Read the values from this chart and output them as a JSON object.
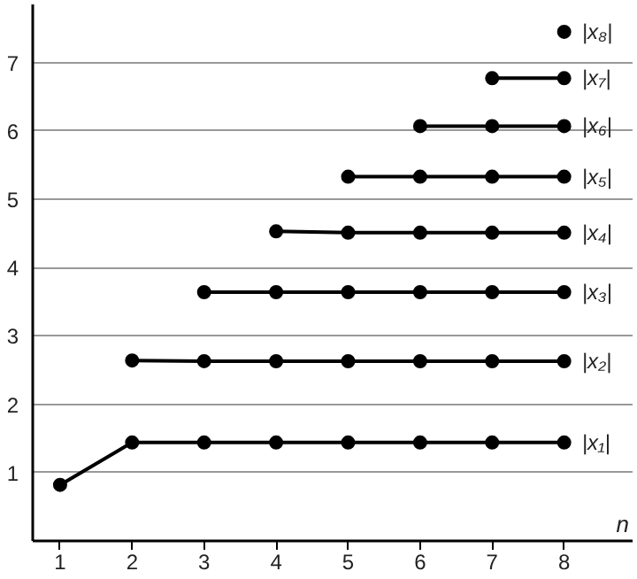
{
  "chart_data": {
    "type": "line",
    "xlabel": "n",
    "marker": "circle",
    "line_style": "solid",
    "grid": "y",
    "xlim": [
      0.62,
      8.95
    ],
    "ylim": [
      0,
      7.85
    ],
    "xticks": [
      1,
      2,
      3,
      4,
      5,
      6,
      7,
      8
    ],
    "yticks": [
      1,
      2,
      3,
      4,
      5,
      6,
      7
    ],
    "series": [
      {
        "name": "|x₁|",
        "color": "#000000",
        "x": [
          1,
          2,
          3,
          4,
          5,
          6,
          7,
          8
        ],
        "values": [
          0.82,
          1.44,
          1.44,
          1.44,
          1.44,
          1.44,
          1.44,
          1.44
        ]
      },
      {
        "name": "|x₂|",
        "color": "#000000",
        "x": [
          2,
          3,
          4,
          5,
          6,
          7,
          8
        ],
        "values": [
          2.64,
          2.63,
          2.63,
          2.63,
          2.63,
          2.63,
          2.63
        ]
      },
      {
        "name": "|x₃|",
        "color": "#000000",
        "x": [
          3,
          4,
          5,
          6,
          7,
          8
        ],
        "values": [
          3.64,
          3.64,
          3.64,
          3.64,
          3.64,
          3.64
        ]
      },
      {
        "name": "|x₄|",
        "color": "#000000",
        "x": [
          4,
          5,
          6,
          7,
          8
        ],
        "values": [
          4.53,
          4.51,
          4.51,
          4.51,
          4.51
        ]
      },
      {
        "name": "|x₅|",
        "color": "#000000",
        "x": [
          5,
          6,
          7,
          8
        ],
        "values": [
          5.33,
          5.33,
          5.33,
          5.33
        ]
      },
      {
        "name": "|x₆|",
        "color": "#000000",
        "x": [
          6,
          7,
          8
        ],
        "values": [
          6.07,
          6.07,
          6.07
        ]
      },
      {
        "name": "|x₇|",
        "color": "#000000",
        "x": [
          7,
          8
        ],
        "values": [
          6.77,
          6.77
        ]
      },
      {
        "name": "|x₈|",
        "color": "#000000",
        "x": [
          8
        ],
        "values": [
          7.45
        ]
      }
    ]
  }
}
